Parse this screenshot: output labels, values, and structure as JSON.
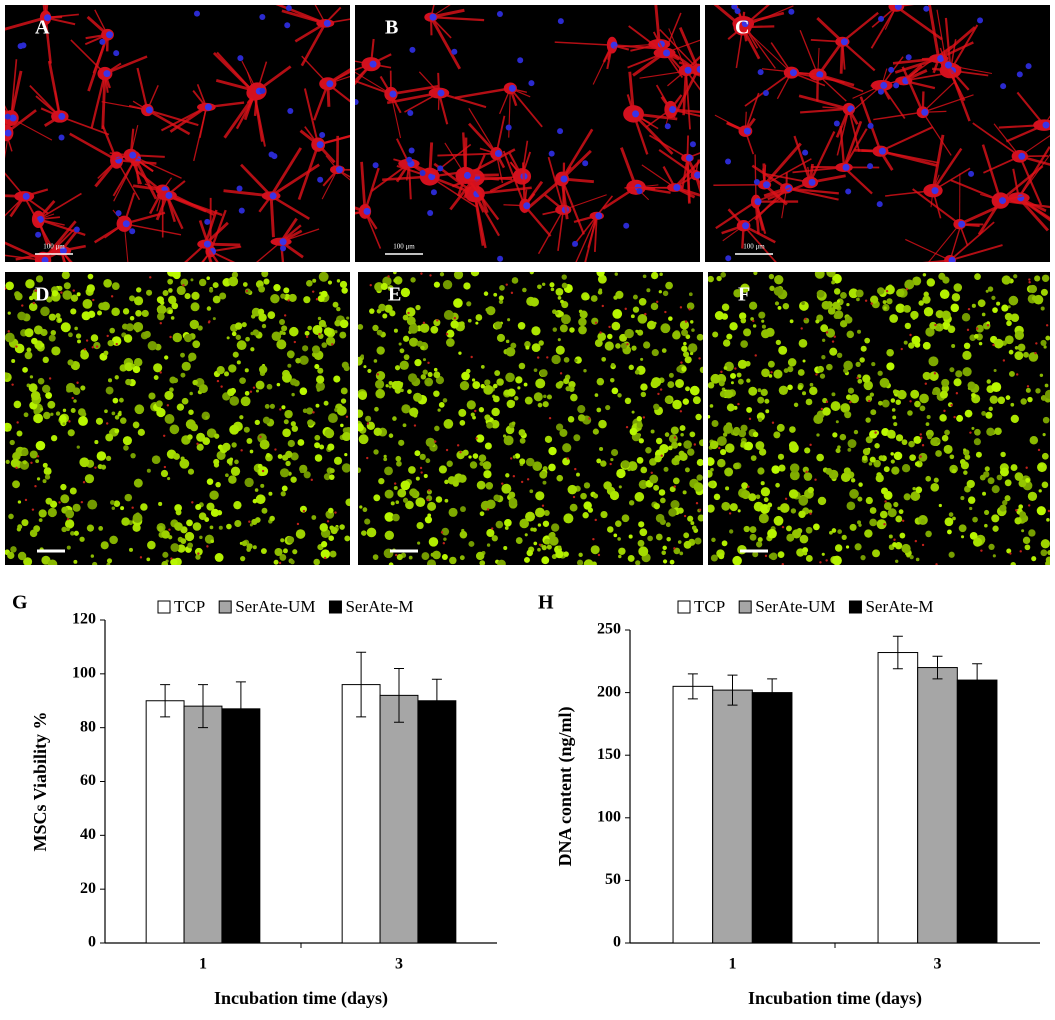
{
  "image_panels": [
    {
      "label": "A",
      "scale_label": "100 μm"
    },
    {
      "label": "B",
      "scale_label": "100 μm"
    },
    {
      "label": "C",
      "scale_label": "100 μm"
    },
    {
      "label": "D"
    },
    {
      "label": "E"
    },
    {
      "label": "F"
    }
  ],
  "chart_data": [
    {
      "type": "bar",
      "panel_label": "G",
      "categories": [
        "1",
        "3"
      ],
      "x_label": "Incubation time (days)",
      "y_label": "MSCs Viability %",
      "ylim": [
        0,
        120
      ],
      "yticks": [
        0,
        20,
        40,
        60,
        80,
        100,
        120
      ],
      "legend": "top",
      "series": [
        {
          "name": "TCP",
          "color": "#ffffff",
          "values": [
            90,
            96
          ],
          "errors": [
            6,
            12
          ]
        },
        {
          "name": "SerAte-UM",
          "color": "#a6a6a6",
          "values": [
            88,
            92
          ],
          "errors": [
            8,
            10
          ]
        },
        {
          "name": "SerAte-M",
          "color": "#000000",
          "values": [
            87,
            90
          ],
          "errors": [
            10,
            8
          ]
        }
      ]
    },
    {
      "type": "bar",
      "panel_label": "H",
      "categories": [
        "1",
        "3"
      ],
      "x_label": "Incubation time (days)",
      "y_label": "DNA content (ng/ml)",
      "ylim": [
        0,
        250
      ],
      "yticks": [
        0,
        50,
        100,
        150,
        200,
        250
      ],
      "legend": "top",
      "series": [
        {
          "name": "TCP",
          "color": "#ffffff",
          "values": [
            205,
            232
          ],
          "errors": [
            10,
            13
          ]
        },
        {
          "name": "SerAte-UM",
          "color": "#a6a6a6",
          "values": [
            202,
            220
          ],
          "errors": [
            12,
            9
          ]
        },
        {
          "name": "SerAte-M",
          "color": "#000000",
          "values": [
            200,
            210
          ],
          "errors": [
            11,
            13
          ]
        }
      ]
    }
  ]
}
